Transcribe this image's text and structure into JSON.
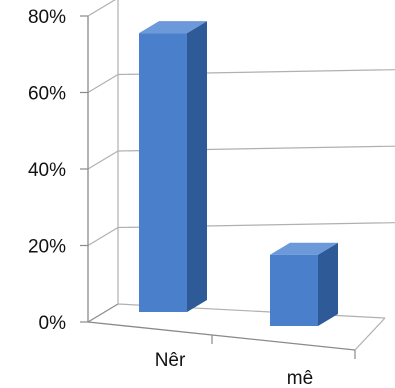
{
  "chart_data": {
    "type": "bar",
    "style": "3d-column",
    "categories": [
      "Nêr",
      "mê"
    ],
    "values": [
      78,
      19
    ],
    "ylim": [
      0,
      80
    ],
    "yticks": [
      0,
      20,
      40,
      60,
      80
    ],
    "ytick_labels": [
      "0%",
      "20%",
      "40%",
      "60%",
      "80%"
    ],
    "grid": true,
    "legend": "none",
    "title": "",
    "xlabel": "",
    "ylabel": "",
    "colors": {
      "bar_front": "#4A7FCB",
      "bar_side": "#2E5A97",
      "bar_top": "#6B99DA",
      "grid": "#b0b0b0",
      "axis": "#8a8a8a"
    }
  }
}
